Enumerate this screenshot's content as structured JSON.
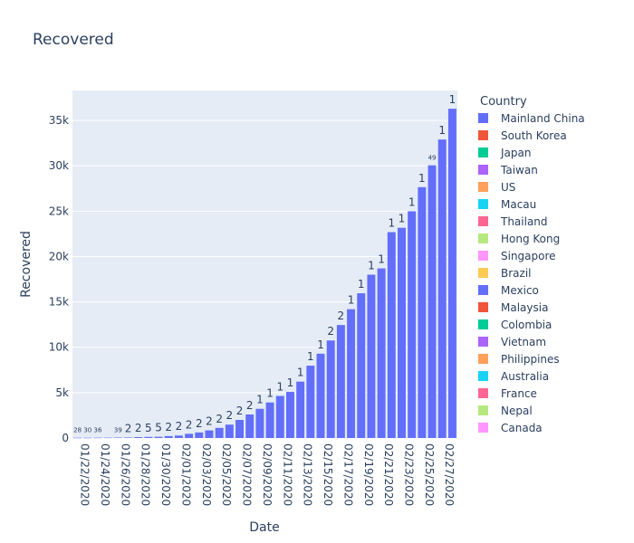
{
  "chart_data": {
    "type": "bar",
    "title": "Recovered",
    "xlabel": "Date",
    "ylabel": "Recovered",
    "ylim": [
      0,
      38300
    ],
    "y_ticks": [
      0,
      5000,
      10000,
      15000,
      20000,
      25000,
      30000,
      35000
    ],
    "y_tick_labels": [
      "0",
      "5k",
      "10k",
      "15k",
      "20k",
      "25k",
      "30k",
      "35k"
    ],
    "grid": true,
    "legend_title": "Country",
    "legend_placement": "right",
    "categories": [
      "01/22/2020",
      "01/23/2020",
      "01/24/2020",
      "01/25/2020",
      "01/26/2020",
      "01/27/2020",
      "01/28/2020",
      "01/29/2020",
      "01/30/2020",
      "01/31/2020",
      "02/01/2020",
      "02/02/2020",
      "02/03/2020",
      "02/04/2020",
      "02/05/2020",
      "02/06/2020",
      "02/07/2020",
      "02/08/2020",
      "02/09/2020",
      "02/10/2020",
      "02/11/2020",
      "02/12/2020",
      "02/13/2020",
      "02/14/2020",
      "02/15/2020",
      "02/16/2020",
      "02/17/2020",
      "02/18/2020",
      "02/19/2020",
      "02/20/2020",
      "02/21/2020",
      "02/22/2020",
      "02/23/2020",
      "02/24/2020",
      "02/25/2020",
      "02/26/2020",
      "02/27/2020",
      "02/28/2020"
    ],
    "x_tick_labels": [
      "01/22/2020",
      "01/24/2020",
      "01/26/2020",
      "01/28/2020",
      "01/30/2020",
      "02/01/2020",
      "02/03/2020",
      "02/05/2020",
      "02/07/2020",
      "02/09/2020",
      "02/11/2020",
      "02/13/2020",
      "02/15/2020",
      "02/17/2020",
      "02/19/2020",
      "02/21/2020",
      "02/23/2020",
      "02/25/2020",
      "02/27/2020"
    ],
    "series": [
      {
        "name": "Mainland China",
        "color": "#636efa",
        "values": [
          28,
          30,
          36,
          39,
          49,
          58,
          101,
          120,
          135,
          214,
          275,
          463,
          614,
          843,
          1115,
          1476,
          1998,
          2595,
          3219,
          3918,
          4636,
          5082,
          6217,
          7973,
          9294,
          10748,
          12455,
          14199,
          15952,
          18002,
          18693,
          22687,
          23170,
          24990,
          27650,
          30053,
          32898,
          36291
        ]
      }
    ],
    "bar_labels": [
      "28",
      "30",
      "36",
      "",
      "39",
      "2",
      "2",
      "5",
      "5",
      "2",
      "2",
      "2",
      "2",
      "2",
      "2",
      "2",
      "2",
      "2",
      "1",
      "1",
      "1",
      "1",
      "1",
      "1",
      "1",
      "2",
      "2",
      "1",
      "1",
      "1",
      "1",
      "1",
      "1",
      "1",
      "1",
      "49",
      "1",
      "1"
    ],
    "legend_entries": [
      {
        "name": "Mainland China",
        "color": "#636efa"
      },
      {
        "name": "South Korea",
        "color": "#EF553B"
      },
      {
        "name": "Japan",
        "color": "#00cc96"
      },
      {
        "name": "Taiwan",
        "color": "#ab63fa"
      },
      {
        "name": "US",
        "color": "#FFA15A"
      },
      {
        "name": "Macau",
        "color": "#19d3f3"
      },
      {
        "name": "Thailand",
        "color": "#FF6692"
      },
      {
        "name": "Hong Kong",
        "color": "#B6E880"
      },
      {
        "name": "Singapore",
        "color": "#FF97FF"
      },
      {
        "name": "Brazil",
        "color": "#FECB52"
      },
      {
        "name": "Mexico",
        "color": "#636efa"
      },
      {
        "name": "Malaysia",
        "color": "#EF553B"
      },
      {
        "name": "Colombia",
        "color": "#00cc96"
      },
      {
        "name": "Vietnam",
        "color": "#ab63fa"
      },
      {
        "name": "Philippines",
        "color": "#FFA15A"
      },
      {
        "name": "Australia",
        "color": "#19d3f3"
      },
      {
        "name": "France",
        "color": "#FF6692"
      },
      {
        "name": "Nepal",
        "color": "#B6E880"
      },
      {
        "name": "Canada",
        "color": "#FF97FF"
      }
    ],
    "plot_bg": "#e5ecf6"
  }
}
